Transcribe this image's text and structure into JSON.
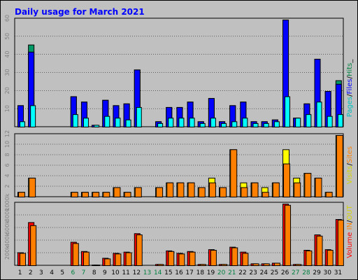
{
  "title": "Daily usage for March 2021",
  "colors": {
    "background": "#c0c0c0",
    "panel": "#c0c0c0",
    "hits": "#009966",
    "files": "#0000ff",
    "pages": "#00ffff",
    "visits": "#ffff00",
    "sites": "#ff8000",
    "kbin": "#ff0000",
    "kbout": "#ff8000",
    "title": "#0000ff",
    "weekday_label": "#000000",
    "weekend_label": "#008040"
  },
  "legends": {
    "top": [
      {
        "text": "Pages",
        "color": "#00c0c0"
      },
      {
        "text": "/",
        "color": "#000000"
      },
      {
        "text": "Files",
        "color": "#0000ff"
      },
      {
        "text": "/",
        "color": "#000000"
      },
      {
        "text": "Hits",
        "color": "#008040"
      },
      {
        "text": "_",
        "color": "#000000"
      }
    ],
    "middle": [
      {
        "text": "Visits",
        "color": "#d4d400"
      },
      {
        "text": "/",
        "color": "#000000"
      },
      {
        "text": "Sites",
        "color": "#ff8000"
      }
    ],
    "bottom": [
      {
        "text": "Volume",
        "color": "#ff0000"
      },
      {
        "text": " ",
        "color": "#000000"
      },
      {
        "text": "IN",
        "color": "#ff8000"
      },
      {
        "text": "/",
        "color": "#000000"
      },
      {
        "text": "OUT",
        "color": "#d4d400"
      }
    ]
  },
  "chart_data": [
    {
      "type": "bar",
      "title": "Daily usage for March 2021",
      "categories": [
        "1",
        "2",
        "3",
        "4",
        "5",
        "6",
        "7",
        "8",
        "9",
        "10",
        "11",
        "12",
        "13",
        "14",
        "15",
        "16",
        "17",
        "18",
        "19",
        "20",
        "21",
        "22",
        "23",
        "24",
        "25",
        "26",
        "27",
        "28",
        "29",
        "30",
        "31"
      ],
      "weekend_days": [
        "6",
        "7",
        "13",
        "14",
        "20",
        "21",
        "27",
        "28"
      ],
      "ylim": [
        0,
        60
      ],
      "y_ticks": [
        "10",
        "20",
        "30",
        "40",
        "50",
        "60"
      ],
      "series": [
        {
          "name": "Hits",
          "values": [
            12,
            46,
            0,
            0,
            0,
            17,
            14,
            1,
            15,
            12,
            13,
            32,
            0,
            3,
            11,
            11,
            14,
            3,
            16,
            3,
            12,
            14,
            3,
            3,
            4,
            60,
            5,
            13,
            38,
            20,
            26
          ]
        },
        {
          "name": "Files",
          "values": [
            12,
            42,
            0,
            0,
            0,
            17,
            14,
            1,
            15,
            12,
            13,
            32,
            0,
            3,
            11,
            11,
            14,
            3,
            16,
            3,
            12,
            14,
            3,
            3,
            4,
            60,
            5,
            13,
            38,
            20,
            24
          ]
        },
        {
          "name": "Pages",
          "values": [
            3,
            12,
            0,
            0,
            0,
            7,
            5,
            1,
            6,
            5,
            4,
            11,
            0,
            2,
            5,
            5,
            5,
            2,
            5,
            2,
            3,
            5,
            2,
            2,
            3,
            17,
            5,
            7,
            14,
            6,
            7
          ]
        }
      ]
    },
    {
      "type": "bar",
      "categories": [
        "1",
        "2",
        "3",
        "4",
        "5",
        "6",
        "7",
        "8",
        "9",
        "10",
        "11",
        "12",
        "13",
        "14",
        "15",
        "16",
        "17",
        "18",
        "19",
        "20",
        "21",
        "22",
        "23",
        "24",
        "25",
        "26",
        "27",
        "28",
        "29",
        "30",
        "31"
      ],
      "ylim": [
        0,
        13
      ],
      "y_ticks": [
        "2",
        "4",
        "6",
        "8",
        "10",
        "12"
      ],
      "series": [
        {
          "name": "Visits",
          "values": [
            1,
            4,
            0,
            0,
            0,
            1,
            1,
            1,
            1,
            2,
            1,
            2,
            0,
            2,
            3,
            3,
            3,
            2,
            4,
            2,
            10,
            3,
            3,
            2,
            3,
            10,
            4,
            5,
            4,
            1,
            13
          ]
        },
        {
          "name": "Sites",
          "values": [
            1,
            4,
            0,
            0,
            0,
            1,
            1,
            1,
            1,
            2,
            1,
            2,
            0,
            2,
            3,
            3,
            3,
            2,
            3,
            2,
            10,
            2,
            3,
            1,
            3,
            7,
            3,
            5,
            4,
            1,
            13
          ]
        }
      ]
    },
    {
      "type": "bar",
      "categories": [
        "1",
        "2",
        "3",
        "4",
        "5",
        "6",
        "7",
        "8",
        "9",
        "10",
        "11",
        "12",
        "13",
        "14",
        "15",
        "16",
        "17",
        "18",
        "19",
        "20",
        "21",
        "22",
        "23",
        "24",
        "25",
        "26",
        "27",
        "28",
        "29",
        "30",
        "31"
      ],
      "ylim": [
        0,
        1000
      ],
      "y_ticks": [
        "200k",
        "400k",
        "600k",
        "800k",
        "1000k"
      ],
      "series": [
        {
          "name": "KB In",
          "values": [
            210,
            700,
            0,
            0,
            0,
            380,
            230,
            10,
            120,
            200,
            220,
            520,
            0,
            20,
            240,
            200,
            230,
            20,
            260,
            20,
            300,
            220,
            30,
            30,
            40,
            1000,
            20,
            250,
            500,
            260,
            750
          ]
        },
        {
          "name": "KB Out",
          "values": [
            200,
            650,
            0,
            0,
            0,
            360,
            220,
            10,
            110,
            190,
            210,
            500,
            0,
            20,
            230,
            190,
            220,
            20,
            250,
            20,
            290,
            200,
            30,
            30,
            40,
            980,
            20,
            240,
            480,
            250,
            740
          ]
        }
      ]
    }
  ]
}
